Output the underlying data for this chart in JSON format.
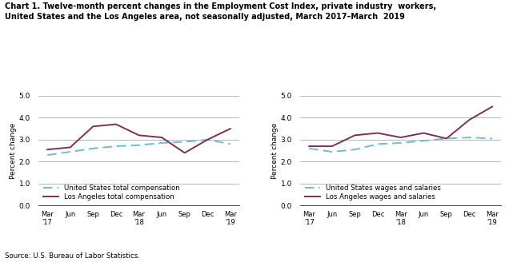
{
  "title_line1": "Chart 1. Twelve-month percent changes in the Employment Cost Index, private industry  workers,",
  "title_line2": "United States and the Los Angeles area, not seasonally adjusted, March 2017–March  2019",
  "ylabel": "Percent change",
  "source": "Source: U.S. Bureau of Labor Statistics.",
  "x_labels": [
    "Mar\n'17",
    "Jun",
    "Sep",
    "Dec",
    "Mar\n'18",
    "Jun",
    "Sep",
    "Dec",
    "Mar\n'19"
  ],
  "ylim": [
    0.0,
    5.0
  ],
  "yticks": [
    0.0,
    1.0,
    2.0,
    3.0,
    4.0,
    5.0
  ],
  "left_chart": {
    "us_total_comp": [
      2.3,
      2.45,
      2.6,
      2.7,
      2.75,
      2.85,
      2.9,
      3.0,
      2.8
    ],
    "la_total_comp": [
      2.55,
      2.65,
      3.6,
      3.7,
      3.2,
      3.1,
      2.4,
      3.0,
      3.5
    ],
    "legend1": "United States total compensation",
    "legend2": "Los Angeles total compensation"
  },
  "right_chart": {
    "us_wages_sal": [
      2.6,
      2.45,
      2.55,
      2.8,
      2.85,
      2.95,
      3.05,
      3.1,
      3.05
    ],
    "la_wages_sal": [
      2.7,
      2.7,
      3.2,
      3.3,
      3.1,
      3.3,
      3.05,
      3.9,
      4.5
    ],
    "legend1": "United States wages and salaries",
    "legend2": "Los Angeles wages and salaries"
  },
  "us_color": "#72b8d8",
  "la_color": "#7b2f5a",
  "bg_color": "#ffffff",
  "grid_color": "#999999"
}
